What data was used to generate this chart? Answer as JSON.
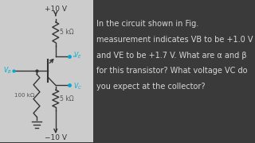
{
  "bg_color": "#3a3a3a",
  "circuit_bg": "#d8d8d8",
  "text_color": "#d8d8d8",
  "text_lines": [
    "In the circuit shown in Fig.",
    "measurement indicates VB to be +1.0 V",
    "and VE to be +1.7 V. What are α and β",
    "for this transistor? What voltage VC do",
    "you expect at the collector?"
  ],
  "text_fontsize": 7.0,
  "vcc_label": "+10 V",
  "vee_label": "−10 V",
  "r1_label": "5 kΩ",
  "r2_label": "100 kΩ",
  "r3_label": "5 kΩ",
  "wire_color": "#333333",
  "label_color": "#00aacc",
  "vb_label": "V_B",
  "ve_label": "V_E",
  "vc_label": "V_C"
}
